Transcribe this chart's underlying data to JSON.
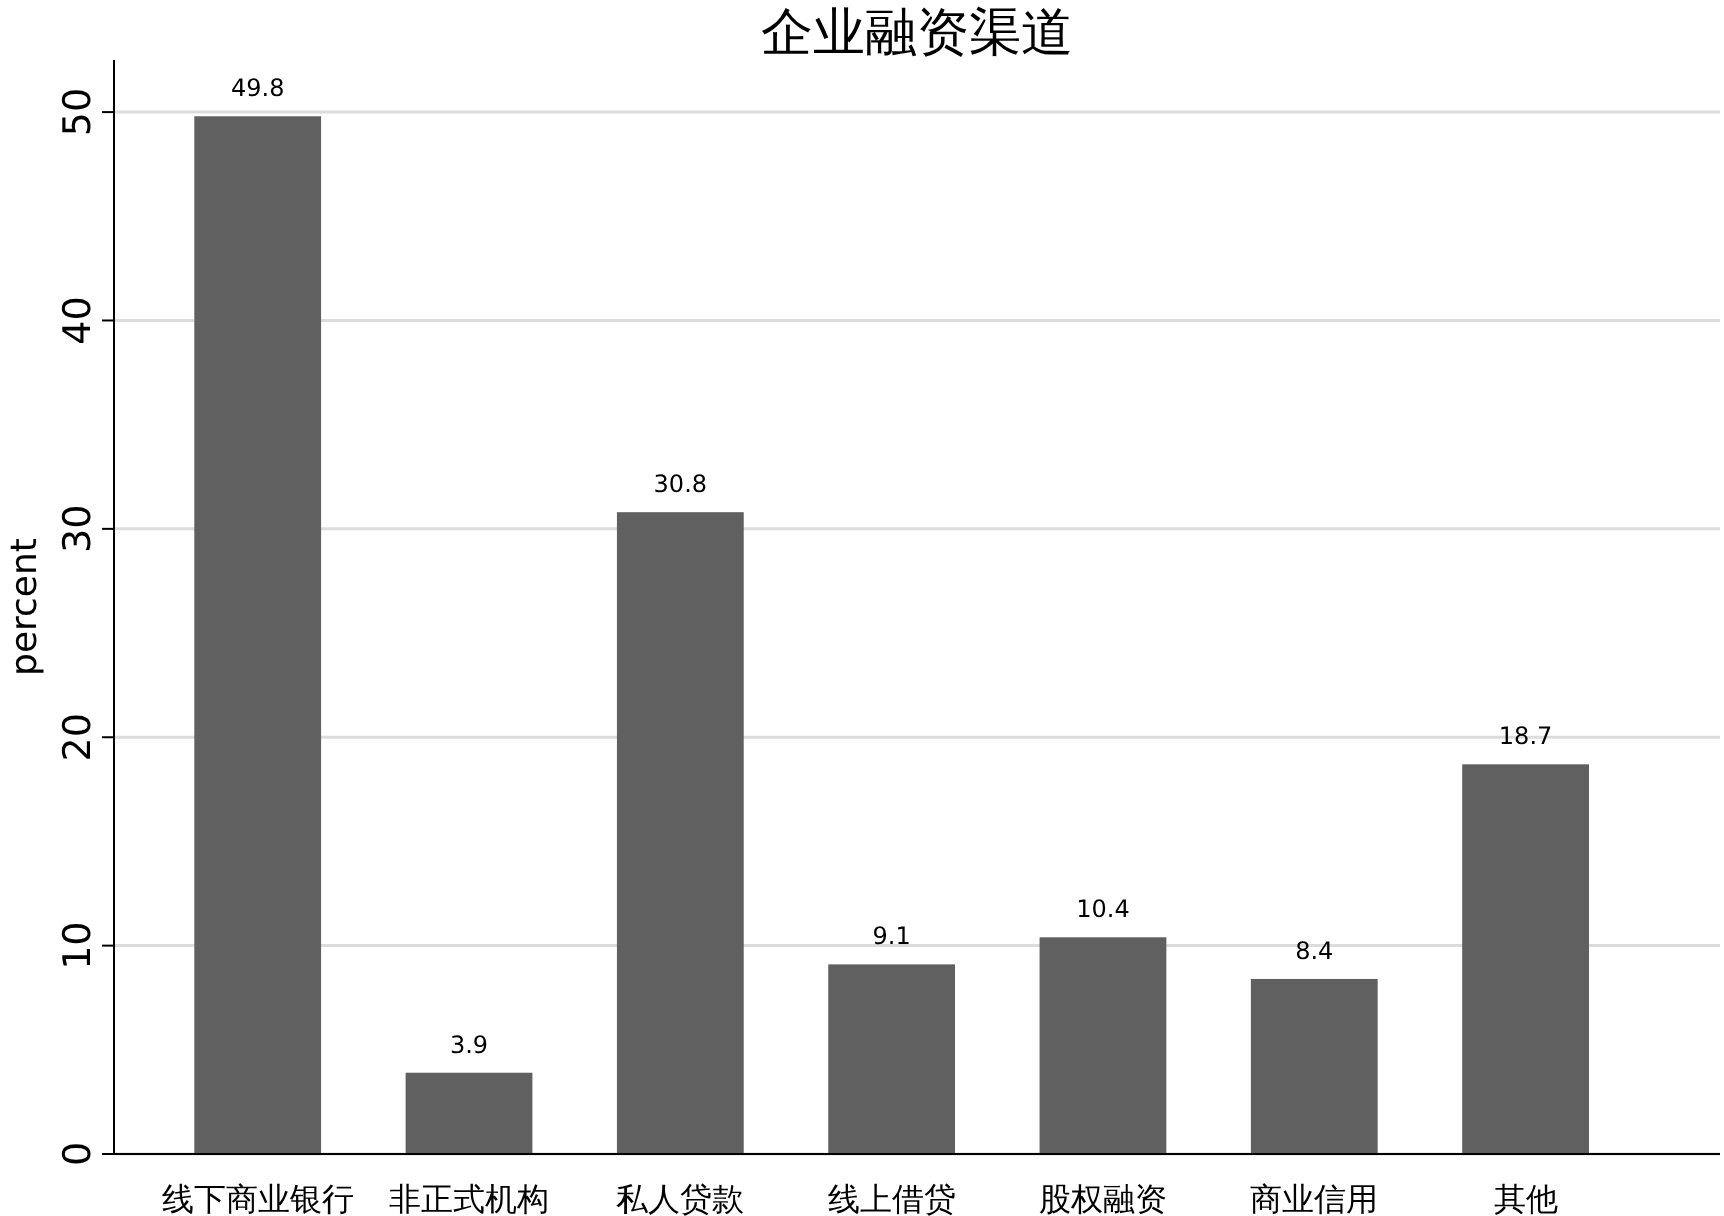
{
  "chart_data": {
    "type": "bar",
    "title": "企业融资渠道",
    "ylabel": "percent",
    "categories": [
      "线下商业银行",
      "非正式机构",
      "私人贷款",
      "线上借贷",
      "股权融资",
      "商业信用",
      "其他"
    ],
    "values": [
      49.8,
      3.9,
      30.8,
      9.1,
      10.4,
      8.4,
      18.7
    ],
    "color": "#606060",
    "ylim": [
      0,
      52.5
    ],
    "yticks": [
      0,
      10,
      20,
      30,
      40,
      50
    ],
    "grid": "y",
    "data_labels": true
  }
}
